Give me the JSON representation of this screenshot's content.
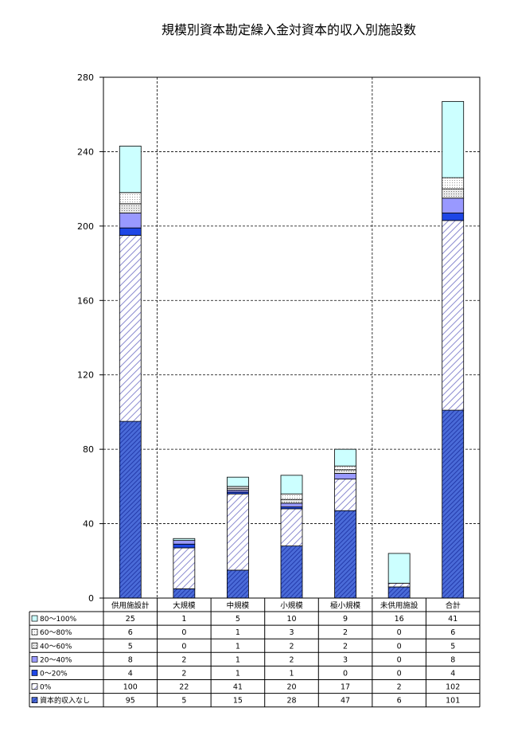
{
  "chart_data": {
    "type": "bar",
    "stacked": true,
    "title": "規模別資本勘定繰入金対資本的収入別施設数",
    "categories": [
      "供用施設計",
      "大規模",
      "中規模",
      "小規模",
      "極小規模",
      "未供用施設",
      "合計"
    ],
    "ylim": [
      0,
      280
    ],
    "yticks": [
      0,
      40,
      80,
      120,
      160,
      200,
      240,
      280
    ],
    "grid": true,
    "legend_placement": "data-table-left",
    "series": [
      {
        "name": "資本的収入なし",
        "values": [
          95,
          5,
          15,
          28,
          47,
          6,
          101
        ],
        "color": "#4a6bd8",
        "pattern": "dense-diag"
      },
      {
        "name": "0%",
        "values": [
          100,
          22,
          41,
          20,
          17,
          2,
          102
        ],
        "color": "#c8c8ea",
        "pattern": "wide-diag"
      },
      {
        "name": "0～20%",
        "values": [
          4,
          2,
          1,
          1,
          0,
          0,
          4
        ],
        "color": "#1e46e6",
        "pattern": "solid"
      },
      {
        "name": "20～40%",
        "values": [
          8,
          2,
          1,
          2,
          3,
          0,
          8
        ],
        "color": "#9999ff",
        "pattern": "solid"
      },
      {
        "name": "40～60%",
        "values": [
          5,
          0,
          1,
          2,
          2,
          0,
          5
        ],
        "color": "#d9d9d9",
        "pattern": "dots"
      },
      {
        "name": "60～80%",
        "values": [
          6,
          0,
          1,
          3,
          2,
          0,
          6
        ],
        "color": "#e6e6e6",
        "pattern": "fine-dots"
      },
      {
        "name": "80～100%",
        "values": [
          25,
          1,
          5,
          10,
          9,
          16,
          41
        ],
        "color": "#ccffff",
        "pattern": "solid"
      }
    ],
    "table_row_order": [
      "80～100%",
      "60～80%",
      "40～60%",
      "20～40%",
      "0～20%",
      "0%",
      "資本的収入なし"
    ]
  }
}
